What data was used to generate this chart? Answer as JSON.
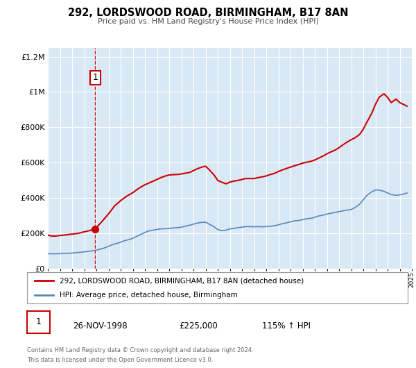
{
  "title": "292, LORDSWOOD ROAD, BIRMINGHAM, B17 8AN",
  "subtitle": "Price paid vs. HM Land Registry's House Price Index (HPI)",
  "sale_date": "26-NOV-1998",
  "sale_price": 225000,
  "sale_label": "115% ↑ HPI",
  "marker_year": 1998.91,
  "marker_value": 225000,
  "annotation_label": "1",
  "property_label": "292, LORDSWOOD ROAD, BIRMINGHAM, B17 8AN (detached house)",
  "hpi_label": "HPI: Average price, detached house, Birmingham",
  "footer1": "Contains HM Land Registry data © Crown copyright and database right 2024.",
  "footer2": "This data is licensed under the Open Government Licence v3.0.",
  "property_color": "#cc0000",
  "hpi_color": "#5588bb",
  "plot_bg_color": "#d9e8f5",
  "grid_color": "#ffffff",
  "ylim": [
    0,
    1250000
  ],
  "xlim_start": 1995,
  "xlim_end": 2025,
  "property_x": [
    1995.0,
    1995.1,
    1995.2,
    1995.3,
    1995.5,
    1995.7,
    1995.9,
    1996.1,
    1996.3,
    1996.5,
    1996.7,
    1996.9,
    1997.1,
    1997.3,
    1997.5,
    1997.7,
    1997.9,
    1998.1,
    1998.3,
    1998.5,
    1998.7,
    1998.91,
    1999.1,
    1999.5,
    2000.0,
    2000.5,
    2001.0,
    2001.5,
    2002.0,
    2002.5,
    2003.0,
    2003.5,
    2004.0,
    2004.3,
    2004.7,
    2005.0,
    2005.3,
    2005.7,
    2006.0,
    2006.3,
    2006.7,
    2007.0,
    2007.3,
    2007.7,
    2008.0,
    2008.3,
    2008.7,
    2009.0,
    2009.3,
    2009.7,
    2010.0,
    2010.3,
    2010.7,
    2011.0,
    2011.3,
    2011.7,
    2012.0,
    2012.3,
    2012.7,
    2013.0,
    2013.3,
    2013.7,
    2014.0,
    2014.3,
    2014.7,
    2015.0,
    2015.3,
    2015.7,
    2016.0,
    2016.3,
    2016.7,
    2017.0,
    2017.3,
    2017.7,
    2018.0,
    2018.3,
    2018.7,
    2019.0,
    2019.3,
    2019.7,
    2020.0,
    2020.3,
    2020.7,
    2021.0,
    2021.3,
    2021.7,
    2022.0,
    2022.3,
    2022.7,
    2023.0,
    2023.3,
    2023.7,
    2024.0,
    2024.3,
    2024.6
  ],
  "property_y": [
    190000,
    188000,
    186000,
    185000,
    184000,
    185000,
    187000,
    188000,
    190000,
    191000,
    193000,
    195000,
    196000,
    198000,
    200000,
    203000,
    207000,
    210000,
    213000,
    217000,
    220000,
    225000,
    240000,
    270000,
    310000,
    355000,
    385000,
    410000,
    430000,
    455000,
    475000,
    490000,
    505000,
    515000,
    525000,
    530000,
    532000,
    533000,
    536000,
    540000,
    545000,
    555000,
    565000,
    575000,
    580000,
    560000,
    530000,
    500000,
    490000,
    480000,
    490000,
    495000,
    500000,
    505000,
    510000,
    510000,
    510000,
    515000,
    520000,
    525000,
    532000,
    540000,
    550000,
    558000,
    568000,
    575000,
    582000,
    590000,
    597000,
    602000,
    608000,
    615000,
    625000,
    638000,
    650000,
    660000,
    672000,
    685000,
    700000,
    718000,
    730000,
    740000,
    760000,
    790000,
    830000,
    880000,
    930000,
    970000,
    990000,
    970000,
    940000,
    960000,
    940000,
    930000,
    920000
  ],
  "hpi_x": [
    1995.0,
    1995.3,
    1995.7,
    1996.0,
    1996.3,
    1996.7,
    1997.0,
    1997.3,
    1997.7,
    1998.0,
    1998.3,
    1998.7,
    1999.0,
    1999.3,
    1999.7,
    2000.0,
    2000.3,
    2000.7,
    2001.0,
    2001.3,
    2001.7,
    2002.0,
    2002.3,
    2002.7,
    2003.0,
    2003.3,
    2003.7,
    2004.0,
    2004.3,
    2004.7,
    2005.0,
    2005.3,
    2005.7,
    2006.0,
    2006.3,
    2006.7,
    2007.0,
    2007.3,
    2007.7,
    2008.0,
    2008.3,
    2008.7,
    2009.0,
    2009.3,
    2009.7,
    2010.0,
    2010.3,
    2010.7,
    2011.0,
    2011.3,
    2011.7,
    2012.0,
    2012.3,
    2012.7,
    2013.0,
    2013.3,
    2013.7,
    2014.0,
    2014.3,
    2014.7,
    2015.0,
    2015.3,
    2015.7,
    2016.0,
    2016.3,
    2016.7,
    2017.0,
    2017.3,
    2017.7,
    2018.0,
    2018.3,
    2018.7,
    2019.0,
    2019.3,
    2019.7,
    2020.0,
    2020.3,
    2020.7,
    2021.0,
    2021.3,
    2021.7,
    2022.0,
    2022.3,
    2022.7,
    2023.0,
    2023.3,
    2023.7,
    2024.0,
    2024.3,
    2024.6
  ],
  "hpi_y": [
    85000,
    84000,
    84000,
    85000,
    86000,
    87000,
    88000,
    90000,
    93000,
    95000,
    98000,
    101000,
    105000,
    110000,
    118000,
    127000,
    135000,
    143000,
    150000,
    158000,
    165000,
    172000,
    182000,
    195000,
    205000,
    213000,
    218000,
    222000,
    225000,
    226000,
    228000,
    230000,
    232000,
    235000,
    240000,
    246000,
    252000,
    258000,
    262000,
    263000,
    252000,
    237000,
    222000,
    215000,
    218000,
    225000,
    228000,
    232000,
    235000,
    238000,
    238000,
    237000,
    238000,
    237000,
    238000,
    240000,
    243000,
    248000,
    254000,
    260000,
    265000,
    270000,
    273000,
    277000,
    282000,
    285000,
    291000,
    298000,
    303000,
    309000,
    313000,
    318000,
    323000,
    327000,
    332000,
    335000,
    345000,
    365000,
    390000,
    415000,
    435000,
    445000,
    445000,
    438000,
    428000,
    420000,
    415000,
    418000,
    422000,
    428000
  ]
}
